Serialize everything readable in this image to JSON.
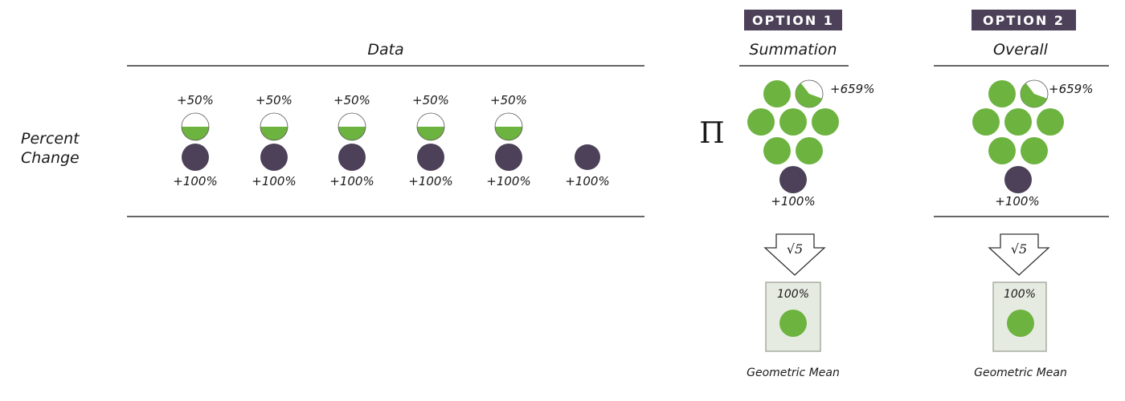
{
  "colors": {
    "green": "#6db33f",
    "dark": "#4c4158",
    "badge": "#4c4158",
    "box_fill": "#e6ebe2",
    "box_stroke": "#a7ada3",
    "rule": "#333333"
  },
  "data_section": {
    "heading": "Data",
    "row_label_line1": "Percent",
    "row_label_line2": "Change",
    "top_labels": [
      "+50%",
      "+50%",
      "+50%",
      "+50%",
      "+50%"
    ],
    "top_fill_fraction": [
      0.5,
      0.5,
      0.5,
      0.5,
      0.5
    ],
    "bottom_labels": [
      "+100%",
      "+100%",
      "+100%",
      "+100%",
      "+100%",
      "+100%"
    ]
  },
  "product_symbol": "Π",
  "options": [
    {
      "badge": "OPTION 1",
      "title": "Summation",
      "green_whole_circles": 7,
      "partial_label": "+659%",
      "partial_fill_fraction": 0.59,
      "dark_label": "+100%",
      "arrow_text": "√5",
      "result_percent": "100%",
      "result_caption": "Geometric Mean"
    },
    {
      "badge": "OPTION 2",
      "title": "Overall",
      "green_whole_circles": 7,
      "partial_label": "+659%",
      "partial_fill_fraction": 0.59,
      "dark_label": "+100%",
      "arrow_text": "√5",
      "result_percent": "100%",
      "result_caption": "Geometric Mean"
    }
  ]
}
